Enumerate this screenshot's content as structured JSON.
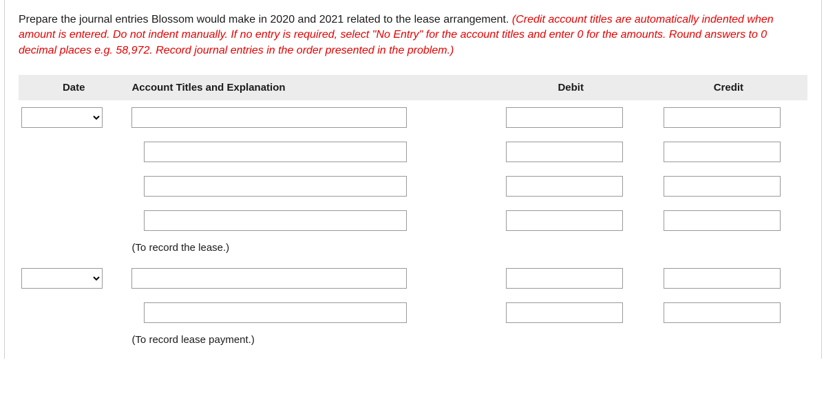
{
  "instructions": {
    "black_text": "Prepare the journal entries Blossom would make in 2020 and 2021 related to the lease arrangement. ",
    "red_text": "(Credit account titles are automatically indented when amount is entered. Do not indent manually. If no entry is required, select \"No Entry\" for the account titles and enter 0 for the amounts. Round answers to 0 decimal places e.g. 58,972. Record journal entries in the order presented in the problem.)"
  },
  "headers": {
    "date": "Date",
    "account": "Account Titles and Explanation",
    "debit": "Debit",
    "credit": "Credit"
  },
  "explanations": {
    "record_lease": "(To record the lease.)",
    "record_payment": "(To record lease payment.)"
  },
  "colors": {
    "red": "#e60000",
    "text": "#1a1a1a",
    "header_bg": "#ececec",
    "border": "#d0d0d0",
    "input_border": "#999999"
  }
}
